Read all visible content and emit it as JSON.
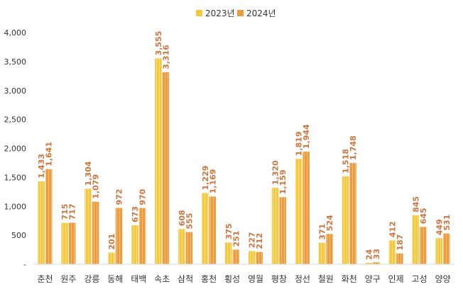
{
  "chart_data": {
    "type": "bar",
    "categories": [
      "춘천",
      "원주",
      "강릉",
      "동해",
      "태백",
      "속초",
      "삼척",
      "홍천",
      "횡성",
      "영월",
      "평창",
      "정선",
      "철원",
      "화천",
      "양구",
      "인제",
      "고성",
      "양양"
    ],
    "series": [
      {
        "name": "2023년",
        "color": "#F5C842",
        "values": [
          1433,
          715,
          1304,
          201,
          673,
          3555,
          608,
          1229,
          375,
          227,
          1320,
          1819,
          371,
          1518,
          24,
          412,
          845,
          449
        ],
        "labels": [
          "1,433",
          "715",
          "1,304",
          "201",
          "673",
          "3,555",
          "608",
          "1,229",
          "375",
          "227",
          "1,320",
          "1,819",
          "371",
          "1,518",
          "24",
          "412",
          "845",
          "449"
        ]
      },
      {
        "name": "2024년",
        "color": "#ED9B3C",
        "values": [
          1641,
          717,
          1079,
          972,
          970,
          3316,
          555,
          1169,
          251,
          212,
          1159,
          1944,
          524,
          1748,
          33,
          187,
          645,
          531
        ],
        "labels": [
          "1,641",
          "717",
          "1,079",
          "972",
          "970",
          "3,316",
          "555",
          "1,169",
          "251",
          "212",
          "1,159",
          "1,944",
          "524",
          "1,748",
          "33",
          "187",
          "645",
          "531"
        ]
      }
    ],
    "yticks": [
      0,
      500,
      1000,
      1500,
      2000,
      2500,
      3000,
      3500,
      4000
    ],
    "ytick_labels": [
      "-",
      "500",
      "1,000",
      "1,500",
      "2,000",
      "2,500",
      "3,000",
      "3,500",
      "4,000"
    ],
    "ylim": [
      0,
      4000
    ],
    "label_color": "#D0743C",
    "grid": false,
    "legend": "top-center",
    "title": "",
    "xlabel": "",
    "ylabel": ""
  }
}
